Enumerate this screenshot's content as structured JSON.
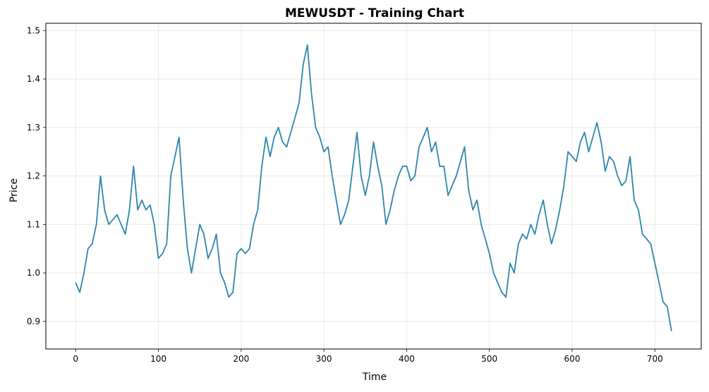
{
  "chart_data": {
    "type": "line",
    "title": "MEWUSDT - Training Chart",
    "xlabel": "Time",
    "ylabel": "Price",
    "xlim": [
      -36,
      756
    ],
    "ylim": [
      0.843,
      1.515
    ],
    "xticks": [
      0,
      100,
      200,
      300,
      400,
      500,
      600,
      700
    ],
    "yticks": [
      0.9,
      1.0,
      1.1,
      1.2,
      1.3,
      1.4,
      1.5
    ],
    "grid": true,
    "line_color": "#2e86ab",
    "series": [
      {
        "x": [
          0,
          5,
          10,
          15,
          20,
          25,
          30,
          35,
          40,
          45,
          50,
          55,
          60,
          65,
          70,
          75,
          80,
          85,
          90,
          95,
          100,
          105,
          110,
          115,
          120,
          125,
          130,
          135,
          140,
          145,
          150,
          155,
          160,
          165,
          170,
          175,
          180,
          185,
          190,
          195,
          200,
          205,
          210,
          215,
          220,
          225,
          230,
          235,
          240,
          245,
          250,
          255,
          260,
          265,
          270,
          275,
          280,
          285,
          290,
          295,
          300,
          305,
          310,
          315,
          320,
          325,
          330,
          335,
          340,
          345,
          350,
          355,
          360,
          365,
          370,
          375,
          380,
          385,
          390,
          395,
          400,
          405,
          410,
          415,
          420,
          425,
          430,
          435,
          440,
          445,
          450,
          455,
          460,
          465,
          470,
          475,
          480,
          485,
          490,
          495,
          500,
          505,
          510,
          515,
          520,
          525,
          530,
          535,
          540,
          545,
          550,
          555,
          560,
          565,
          570,
          575,
          580,
          585,
          590,
          595,
          600,
          605,
          610,
          615,
          620,
          625,
          630,
          635,
          640,
          645,
          650,
          655,
          660,
          665,
          670,
          675,
          680,
          685,
          690,
          695,
          700,
          705,
          710,
          715,
          720
        ],
        "values": [
          0.98,
          0.96,
          1.0,
          1.05,
          1.06,
          1.1,
          1.2,
          1.13,
          1.1,
          1.11,
          1.12,
          1.1,
          1.08,
          1.13,
          1.22,
          1.13,
          1.15,
          1.13,
          1.14,
          1.1,
          1.03,
          1.04,
          1.06,
          1.2,
          1.24,
          1.28,
          1.15,
          1.05,
          1.0,
          1.05,
          1.1,
          1.08,
          1.03,
          1.05,
          1.08,
          1.0,
          0.98,
          0.95,
          0.96,
          1.04,
          1.05,
          1.04,
          1.05,
          1.1,
          1.13,
          1.22,
          1.28,
          1.24,
          1.28,
          1.3,
          1.27,
          1.26,
          1.29,
          1.32,
          1.35,
          1.43,
          1.47,
          1.37,
          1.3,
          1.28,
          1.25,
          1.26,
          1.2,
          1.15,
          1.1,
          1.12,
          1.15,
          1.22,
          1.29,
          1.2,
          1.16,
          1.2,
          1.27,
          1.22,
          1.18,
          1.1,
          1.13,
          1.17,
          1.2,
          1.22,
          1.22,
          1.19,
          1.2,
          1.26,
          1.28,
          1.3,
          1.25,
          1.27,
          1.22,
          1.22,
          1.16,
          1.18,
          1.2,
          1.23,
          1.26,
          1.17,
          1.13,
          1.15,
          1.1,
          1.07,
          1.04,
          1.0,
          0.98,
          0.96,
          0.95,
          1.02,
          1.0,
          1.06,
          1.08,
          1.07,
          1.1,
          1.08,
          1.12,
          1.15,
          1.1,
          1.06,
          1.09,
          1.13,
          1.18,
          1.25,
          1.24,
          1.23,
          1.27,
          1.29,
          1.25,
          1.28,
          1.31,
          1.27,
          1.21,
          1.24,
          1.23,
          1.2,
          1.18,
          1.19,
          1.24,
          1.15,
          1.13,
          1.08,
          1.07,
          1.06,
          1.02,
          0.98,
          0.94,
          0.93,
          0.88
        ]
      }
    ]
  }
}
